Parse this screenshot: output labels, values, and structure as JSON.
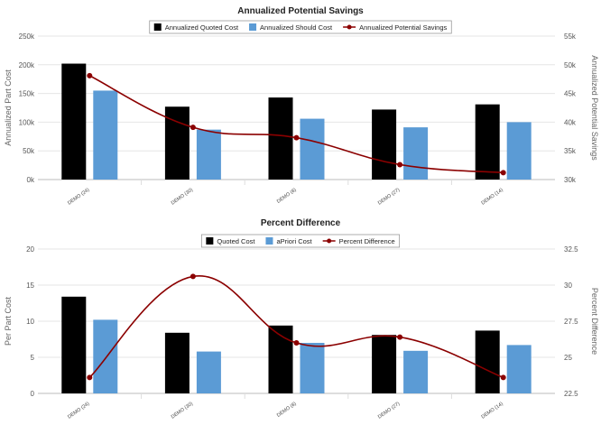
{
  "chart_data": [
    {
      "type": "bar",
      "title": "Annualized Potential Savings",
      "categories": [
        "DEMO (24)",
        "DEMO (30)",
        "DEMO (8)",
        "DEMO (27)",
        "DEMO (14)"
      ],
      "ylabel": "Annualized Part Cost",
      "y2label": "Annualized Potential Savings",
      "ylim": [
        0,
        250000
      ],
      "y2lim": [
        30000,
        55000
      ],
      "yticks": [
        "0k",
        "50k",
        "100k",
        "150k",
        "200k",
        "250k"
      ],
      "y2ticks": [
        "30k",
        "35k",
        "40k",
        "45k",
        "50k",
        "55k"
      ],
      "legend_position": "top-center",
      "grid": true,
      "series": [
        {
          "name": "Annualized Quoted Cost",
          "kind": "bar",
          "color": "#000000",
          "values": [
            202000,
            127000,
            143000,
            122000,
            131000
          ]
        },
        {
          "name": "Annualized Should Cost",
          "kind": "bar",
          "color": "#5b9bd5",
          "values": [
            155000,
            87000,
            106000,
            91000,
            100000
          ]
        },
        {
          "name": "Annualized Potential Savings",
          "kind": "line",
          "axis": "right",
          "color": "#8b0000",
          "values": [
            48100,
            39100,
            37300,
            32600,
            31200
          ]
        }
      ]
    },
    {
      "type": "bar",
      "title": "Percent Difference",
      "categories": [
        "DEMO (24)",
        "DEMO (30)",
        "DEMO (8)",
        "DEMO (27)",
        "DEMO (14)"
      ],
      "ylabel": "Per Part Cost",
      "y2label": "Percent Difference",
      "ylim": [
        0,
        20
      ],
      "y2lim": [
        22.5,
        32.5
      ],
      "yticks": [
        "0",
        "5",
        "10",
        "15",
        "20"
      ],
      "y2ticks": [
        "22.5",
        "25",
        "27.5",
        "30",
        "32.5"
      ],
      "legend_position": "top-center",
      "grid": true,
      "series": [
        {
          "name": "Quoted Cost",
          "kind": "bar",
          "color": "#000000",
          "values": [
            13.4,
            8.4,
            9.4,
            8.1,
            8.7
          ]
        },
        {
          "name": "aPriori Cost",
          "kind": "bar",
          "color": "#5b9bd5",
          "values": [
            10.2,
            5.8,
            7.0,
            5.9,
            6.7
          ]
        },
        {
          "name": "Percent Difference",
          "kind": "line",
          "axis": "right",
          "color": "#8b0000",
          "values": [
            23.6,
            30.6,
            26.0,
            26.4,
            23.6
          ]
        }
      ]
    }
  ]
}
